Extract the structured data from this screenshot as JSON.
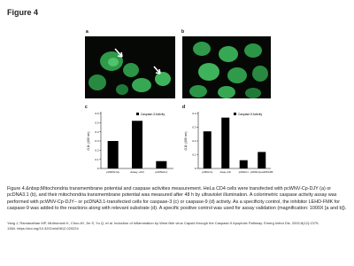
{
  "figure_label": "Figure 4",
  "panel_labels": [
    "a",
    "b"
  ],
  "chart_data": [
    {
      "type": "bar",
      "panel": "c",
      "legend": "Caspase-3 Activity",
      "ylabel": "O.D. (405 nm)",
      "categories": [
        "pcWNV-Cp",
        "Assay +Ctrl",
        "pcDNA3.1"
      ],
      "values": [
        0.3,
        0.52,
        0.08
      ],
      "color": "#000000",
      "ylim": [
        0,
        0.6
      ],
      "yticks": [
        0,
        0.1,
        0.2,
        0.3,
        0.4,
        0.5,
        0.6
      ]
    },
    {
      "type": "bar",
      "panel": "d",
      "legend": "Caspase-9 Activity",
      "ylabel": "O.D. (405 nm)",
      "categories": [
        "pcWNV-Cp",
        "Assay +Ctrl",
        "pcDNA3.1",
        "pcWNV-Cp+LEHD-FMK"
      ],
      "values": [
        0.27,
        0.37,
        0.06,
        0.12
      ],
      "color": "#000000",
      "ylim": [
        0,
        0.4
      ],
      "yticks": [
        0,
        0.1,
        0.2,
        0.3,
        0.4
      ]
    }
  ],
  "caption": "Figure 4.&nbsp;Mitochondria transmembrane potential and caspase activities measurement. HeLa CD4 cells were transfected with pcWNV-Cp-DJY (a) or pcDNA3.1 (b), and their mitochondria transmembrane potential was measured after 48 h by ultraviolet illumination. A colorimetric caspase activity assay was performed with pcWNV-Cp-DJY− or pcDNA3.1-transfected cells for caspase-3 (c) or caspase-9 (d) activity. As a specificity control, the inhibitor LEHD-FMK for caspase-9 was added to the reactions along with relevant substrate (d). A specific positive control was used for assay validation (magnification: 1000X [a and b]).",
  "citation": "Yang J, Ramanathan MP, Muthumani K, Choo AY, Jin S, Yu Q, et al. Induction of Inflammation by West Nile virus Capsid through the Caspase-9 Apoptotic Pathway. Emerg Infect Dis. 2002;8(12):1379-1384. https://doi.org/10.3201/eid0812.020224"
}
